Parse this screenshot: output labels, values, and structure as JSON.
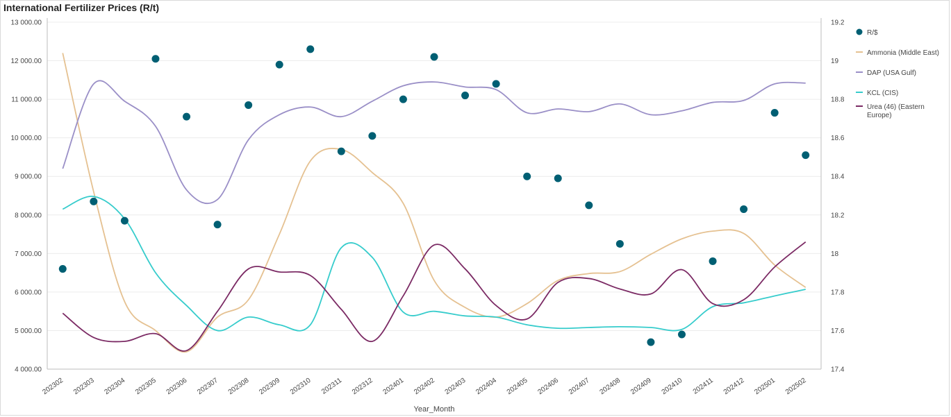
{
  "chart_data": {
    "type": "line",
    "title": "International Fertilizer Prices (R/t)",
    "xlabel": "Year_Month",
    "ylabel": "",
    "ylim": [
      4000,
      13000
    ],
    "y2lim": [
      17.4,
      19.2
    ],
    "y_ticks": [
      "4 000.00",
      "5 000.00",
      "6 000.00",
      "7 000.00",
      "8 000.00",
      "9 000.00",
      "10 000.00",
      "11 000.00",
      "12 000.00",
      "13 000.00"
    ],
    "y2_ticks": [
      "17.4",
      "17.6",
      "17.8",
      "18",
      "18.2",
      "18.4",
      "18.6",
      "18.8",
      "19",
      "19.2"
    ],
    "categories": [
      "202302",
      "202303",
      "202304",
      "202305",
      "202306",
      "202307",
      "202308",
      "202309",
      "202310",
      "202311",
      "202312",
      "202401",
      "202402",
      "202403",
      "202404",
      "202405",
      "202406",
      "202407",
      "202408",
      "202409",
      "202410",
      "202411",
      "202412",
      "202501",
      "202502"
    ],
    "series": [
      {
        "name": "R/$",
        "kind": "dots",
        "axis": "right",
        "color": "#005f73",
        "values": [
          17.92,
          18.27,
          18.17,
          19.01,
          18.71,
          18.15,
          18.77,
          18.98,
          19.06,
          18.53,
          18.61,
          18.8,
          19.02,
          18.82,
          18.88,
          18.4,
          18.39,
          18.25,
          18.05,
          17.54,
          17.58,
          17.96,
          18.23,
          18.73,
          18.51
        ]
      },
      {
        "name": "Ammonia (Middle East)",
        "kind": "line",
        "axis": "left",
        "color": "#e5c191",
        "values": [
          12200,
          8600,
          5750,
          5000,
          4450,
          5350,
          5800,
          7500,
          9400,
          9700,
          9100,
          8300,
          6300,
          5600,
          5350,
          5700,
          6300,
          6480,
          6530,
          6980,
          7380,
          7580,
          7520,
          6700,
          6120
        ]
      },
      {
        "name": "DAP (USA Gulf)",
        "kind": "line",
        "axis": "left",
        "color": "#9a8fc7",
        "values": [
          9200,
          11400,
          10950,
          10300,
          8650,
          8400,
          9950,
          10600,
          10800,
          10550,
          10950,
          11350,
          11450,
          11320,
          11250,
          10650,
          10750,
          10680,
          10880,
          10600,
          10700,
          10920,
          10970,
          11400,
          11420
        ]
      },
      {
        "name": "KCL (CIS)",
        "kind": "line",
        "axis": "left",
        "color": "#36cccc",
        "values": [
          8150,
          8480,
          7900,
          6500,
          5650,
          5000,
          5350,
          5150,
          5150,
          7150,
          6900,
          5480,
          5500,
          5380,
          5350,
          5150,
          5060,
          5080,
          5100,
          5080,
          5030,
          5620,
          5720,
          5900,
          6070
        ]
      },
      {
        "name": "Urea (46) (Eastern Europe)",
        "kind": "line",
        "axis": "left",
        "color": "#7b2a64",
        "values": [
          5450,
          4820,
          4720,
          4920,
          4480,
          5500,
          6600,
          6520,
          6430,
          5550,
          4720,
          5900,
          7220,
          6600,
          5650,
          5300,
          6250,
          6350,
          6080,
          5950,
          6580,
          5700,
          5800,
          6650,
          7300
        ]
      }
    ],
    "legend": [
      "R/$",
      "Ammonia (Middle East)",
      "DAP (USA Gulf)",
      "KCL (CIS)",
      "Urea (46) (Eastern Europe)"
    ],
    "legend_position": "right",
    "grid": true
  }
}
